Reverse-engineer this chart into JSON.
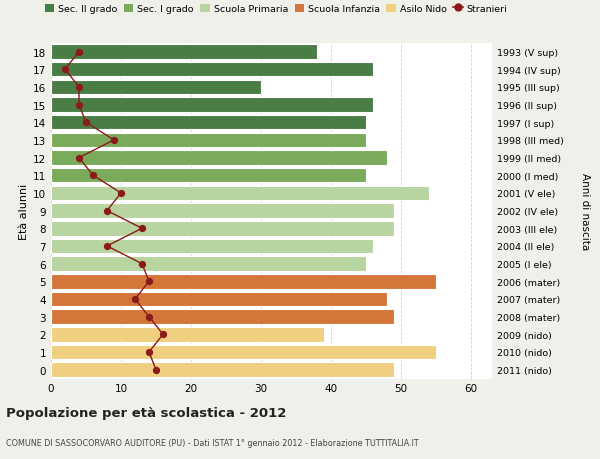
{
  "ages": [
    18,
    17,
    16,
    15,
    14,
    13,
    12,
    11,
    10,
    9,
    8,
    7,
    6,
    5,
    4,
    3,
    2,
    1,
    0
  ],
  "right_labels": [
    "1993 (V sup)",
    "1994 (IV sup)",
    "1995 (III sup)",
    "1996 (II sup)",
    "1997 (I sup)",
    "1998 (III med)",
    "1999 (II med)",
    "2000 (I med)",
    "2001 (V ele)",
    "2002 (IV ele)",
    "2003 (III ele)",
    "2004 (II ele)",
    "2005 (I ele)",
    "2006 (mater)",
    "2007 (mater)",
    "2008 (mater)",
    "2009 (nido)",
    "2010 (nido)",
    "2011 (nido)"
  ],
  "bar_values": [
    38,
    46,
    30,
    46,
    45,
    45,
    48,
    45,
    54,
    49,
    49,
    46,
    45,
    55,
    48,
    49,
    39,
    55,
    49
  ],
  "bar_colors": [
    "#4a7c45",
    "#4a7c45",
    "#4a7c45",
    "#4a7c45",
    "#4a7c45",
    "#7aab5a",
    "#7aab5a",
    "#7aab5a",
    "#b8d4a0",
    "#b8d4a0",
    "#b8d4a0",
    "#b8d4a0",
    "#b8d4a0",
    "#d4763a",
    "#d4763a",
    "#d4763a",
    "#f0d080",
    "#f0d080",
    "#f0d080"
  ],
  "stranieri_values": [
    4,
    2,
    4,
    4,
    5,
    9,
    4,
    6,
    10,
    8,
    13,
    8,
    13,
    14,
    12,
    14,
    16,
    14,
    15
  ],
  "stranieri_color": "#8b1a1a",
  "legend_items": [
    {
      "label": "Sec. II grado",
      "color": "#4a7c45",
      "type": "patch"
    },
    {
      "label": "Sec. I grado",
      "color": "#7aab5a",
      "type": "patch"
    },
    {
      "label": "Scuola Primaria",
      "color": "#b8d4a0",
      "type": "patch"
    },
    {
      "label": "Scuola Infanzia",
      "color": "#d4763a",
      "type": "patch"
    },
    {
      "label": "Asilo Nido",
      "color": "#f0d080",
      "type": "patch"
    },
    {
      "label": "Stranieri",
      "color": "#8b1a1a",
      "type": "line"
    }
  ],
  "ylabel_left": "Età alunni",
  "ylabel_right": "Anni di nascita",
  "title": "Popolazione per età scolastica - 2012",
  "subtitle": "COMUNE DI SASSOCORVARO AUDITORE (PU) - Dati ISTAT 1° gennaio 2012 - Elaborazione TUTTITALIA.IT",
  "xlim": [
    0,
    63
  ],
  "xticks": [
    0,
    10,
    20,
    30,
    40,
    50,
    60
  ],
  "plot_bg_color": "#ffffff",
  "fig_bg_color": "#f0f0eb",
  "grid_color": "#cccccc"
}
